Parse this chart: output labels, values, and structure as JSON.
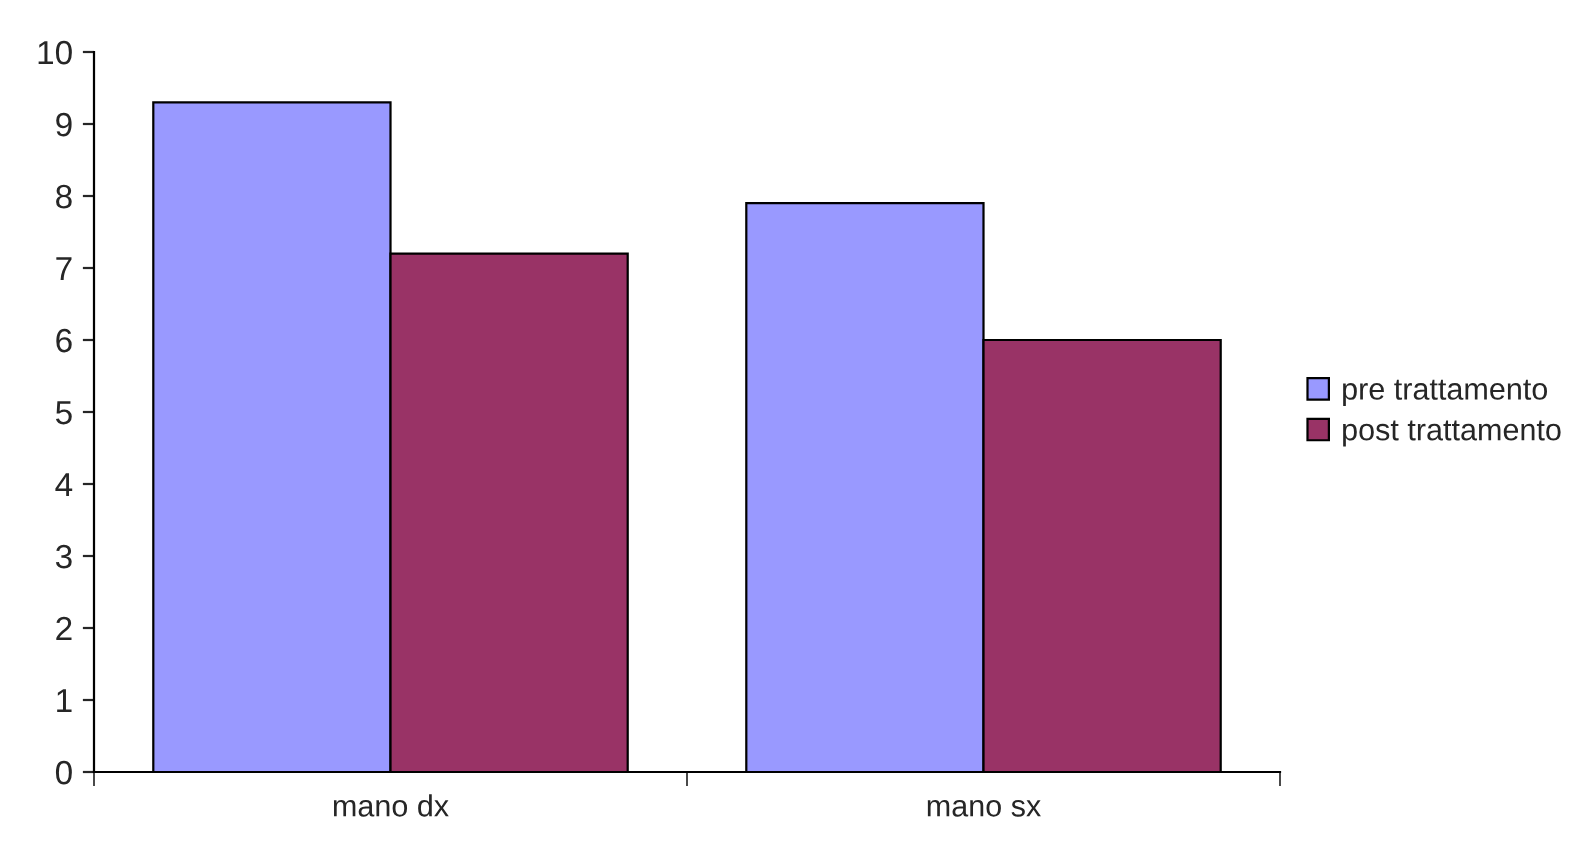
{
  "chart_data": {
    "type": "bar",
    "categories": [
      "mano dx",
      "mano sx"
    ],
    "series": [
      {
        "name": "pre trattamento",
        "color": "#9999ff",
        "values": [
          9.3,
          7.9
        ]
      },
      {
        "name": "post trattamento",
        "color": "#993366",
        "values": [
          7.2,
          6.0
        ]
      }
    ],
    "ylim": [
      0,
      10
    ],
    "yticks": [
      0,
      1,
      2,
      3,
      4,
      5,
      6,
      7,
      8,
      9,
      10
    ],
    "grid": false,
    "legend": "right"
  }
}
